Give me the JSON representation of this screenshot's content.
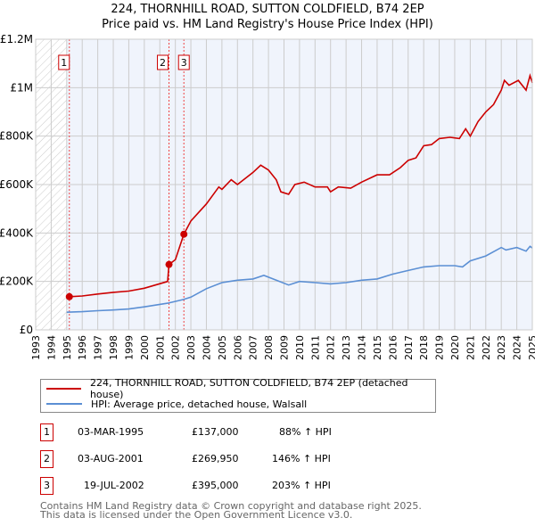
{
  "title": "224, THORNHILL ROAD, SUTTON COLDFIELD, B74 2EP",
  "subtitle": "Price paid vs. HM Land Registry's House Price Index (HPI)",
  "chart_data": {
    "type": "line",
    "title": "224, THORNHILL ROAD, SUTTON COLDFIELD, B74 2EP",
    "subtitle": "Price paid vs. HM Land Registry's House Price Index (HPI)",
    "xlim": [
      1993,
      2025
    ],
    "ylim": [
      0,
      1200000
    ],
    "x_ticks": [
      "1993",
      "1994",
      "1995",
      "1996",
      "1997",
      "1998",
      "1999",
      "2000",
      "2001",
      "2002",
      "2003",
      "2004",
      "2005",
      "2006",
      "2007",
      "2008",
      "2009",
      "2010",
      "2011",
      "2012",
      "2013",
      "2014",
      "2015",
      "2016",
      "2017",
      "2018",
      "2019",
      "2020",
      "2021",
      "2022",
      "2023",
      "2024",
      "2025"
    ],
    "y_ticks": [
      {
        "v": 0,
        "label": "£0"
      },
      {
        "v": 200000,
        "label": "£200K"
      },
      {
        "v": 400000,
        "label": "£400K"
      },
      {
        "v": 600000,
        "label": "£600K"
      },
      {
        "v": 800000,
        "label": "£800K"
      },
      {
        "v": 1000000,
        "label": "£1M"
      },
      {
        "v": 1200000,
        "label": "£1.2M"
      }
    ],
    "grid": true,
    "legend_placement": "below",
    "colors": {
      "property": "#cc0000",
      "hpi": "#5b8fd4",
      "plot_bg": "#f0f4fc"
    },
    "series": [
      {
        "name": "224, THORNHILL ROAD, SUTTON COLDFIELD, B74 2EP (detached house)",
        "key": "property",
        "x": [
          1995.17,
          1996,
          1997,
          1998,
          1999,
          2000,
          2001.5,
          2001.59,
          2002,
          2002.55,
          2003,
          2004,
          2004.8,
          2005,
          2005.6,
          2006,
          2007,
          2007.5,
          2008,
          2008.5,
          2008.8,
          2009.3,
          2009.7,
          2010.3,
          2011,
          2011.8,
          2012,
          2012.5,
          2013.3,
          2014,
          2015,
          2015.8,
          2016.5,
          2017,
          2017.5,
          2018,
          2018.5,
          2019,
          2019.7,
          2020.3,
          2020.7,
          2021,
          2021.5,
          2022,
          2022.5,
          2023,
          2023.2,
          2023.5,
          2024.1,
          2024.6,
          2024.85,
          2025
        ],
        "y": [
          137000,
          140000,
          148000,
          155000,
          160000,
          172000,
          200000,
          269950,
          290000,
          395000,
          450000,
          520000,
          590000,
          580000,
          620000,
          600000,
          650000,
          680000,
          660000,
          620000,
          570000,
          560000,
          600000,
          610000,
          590000,
          590000,
          570000,
          590000,
          585000,
          610000,
          640000,
          640000,
          670000,
          700000,
          710000,
          760000,
          765000,
          790000,
          795000,
          790000,
          830000,
          800000,
          860000,
          900000,
          930000,
          990000,
          1030000,
          1010000,
          1030000,
          990000,
          1050000,
          1020000
        ]
      },
      {
        "name": "HPI: Average price, detached house, Walsall",
        "key": "hpi",
        "x": [
          1995,
          1996,
          1997,
          1998,
          1999,
          2000,
          2001.5,
          2002.5,
          2003,
          2004,
          2005,
          2006,
          2007,
          2007.7,
          2008.5,
          2009.3,
          2010,
          2011,
          2012,
          2013,
          2014,
          2015,
          2016,
          2017,
          2018,
          2019,
          2020,
          2020.5,
          2021,
          2022,
          2023,
          2023.3,
          2024,
          2024.6,
          2024.85,
          2025
        ],
        "y": [
          73000,
          75000,
          79000,
          82000,
          86000,
          95000,
          110000,
          125000,
          135000,
          170000,
          195000,
          205000,
          210000,
          225000,
          205000,
          185000,
          200000,
          195000,
          190000,
          195000,
          205000,
          210000,
          230000,
          245000,
          260000,
          265000,
          265000,
          260000,
          285000,
          305000,
          340000,
          330000,
          340000,
          325000,
          345000,
          338000
        ]
      }
    ],
    "sales": [
      {
        "num": "1",
        "x": 1995.17,
        "price": 137000,
        "date": "03-MAR-1995",
        "price_label": "£137,000",
        "hpi": "88% ↑ HPI"
      },
      {
        "num": "2",
        "x": 2001.59,
        "price": 269950,
        "date": "03-AUG-2001",
        "price_label": "£269,950",
        "hpi": "146% ↑ HPI"
      },
      {
        "num": "3",
        "x": 2002.55,
        "price": 395000,
        "date": "19-JUL-2002",
        "price_label": "£395,000",
        "hpi": "203% ↑ HPI"
      }
    ],
    "hatched_before": 1995
  },
  "legend": {
    "property": "224, THORNHILL ROAD, SUTTON COLDFIELD, B74 2EP (detached house)",
    "hpi": "HPI: Average price, detached house, Walsall"
  },
  "footer": {
    "line1": "Contains HM Land Registry data © Crown copyright and database right 2025.",
    "line2": "This data is licensed under the Open Government Licence v3.0."
  }
}
